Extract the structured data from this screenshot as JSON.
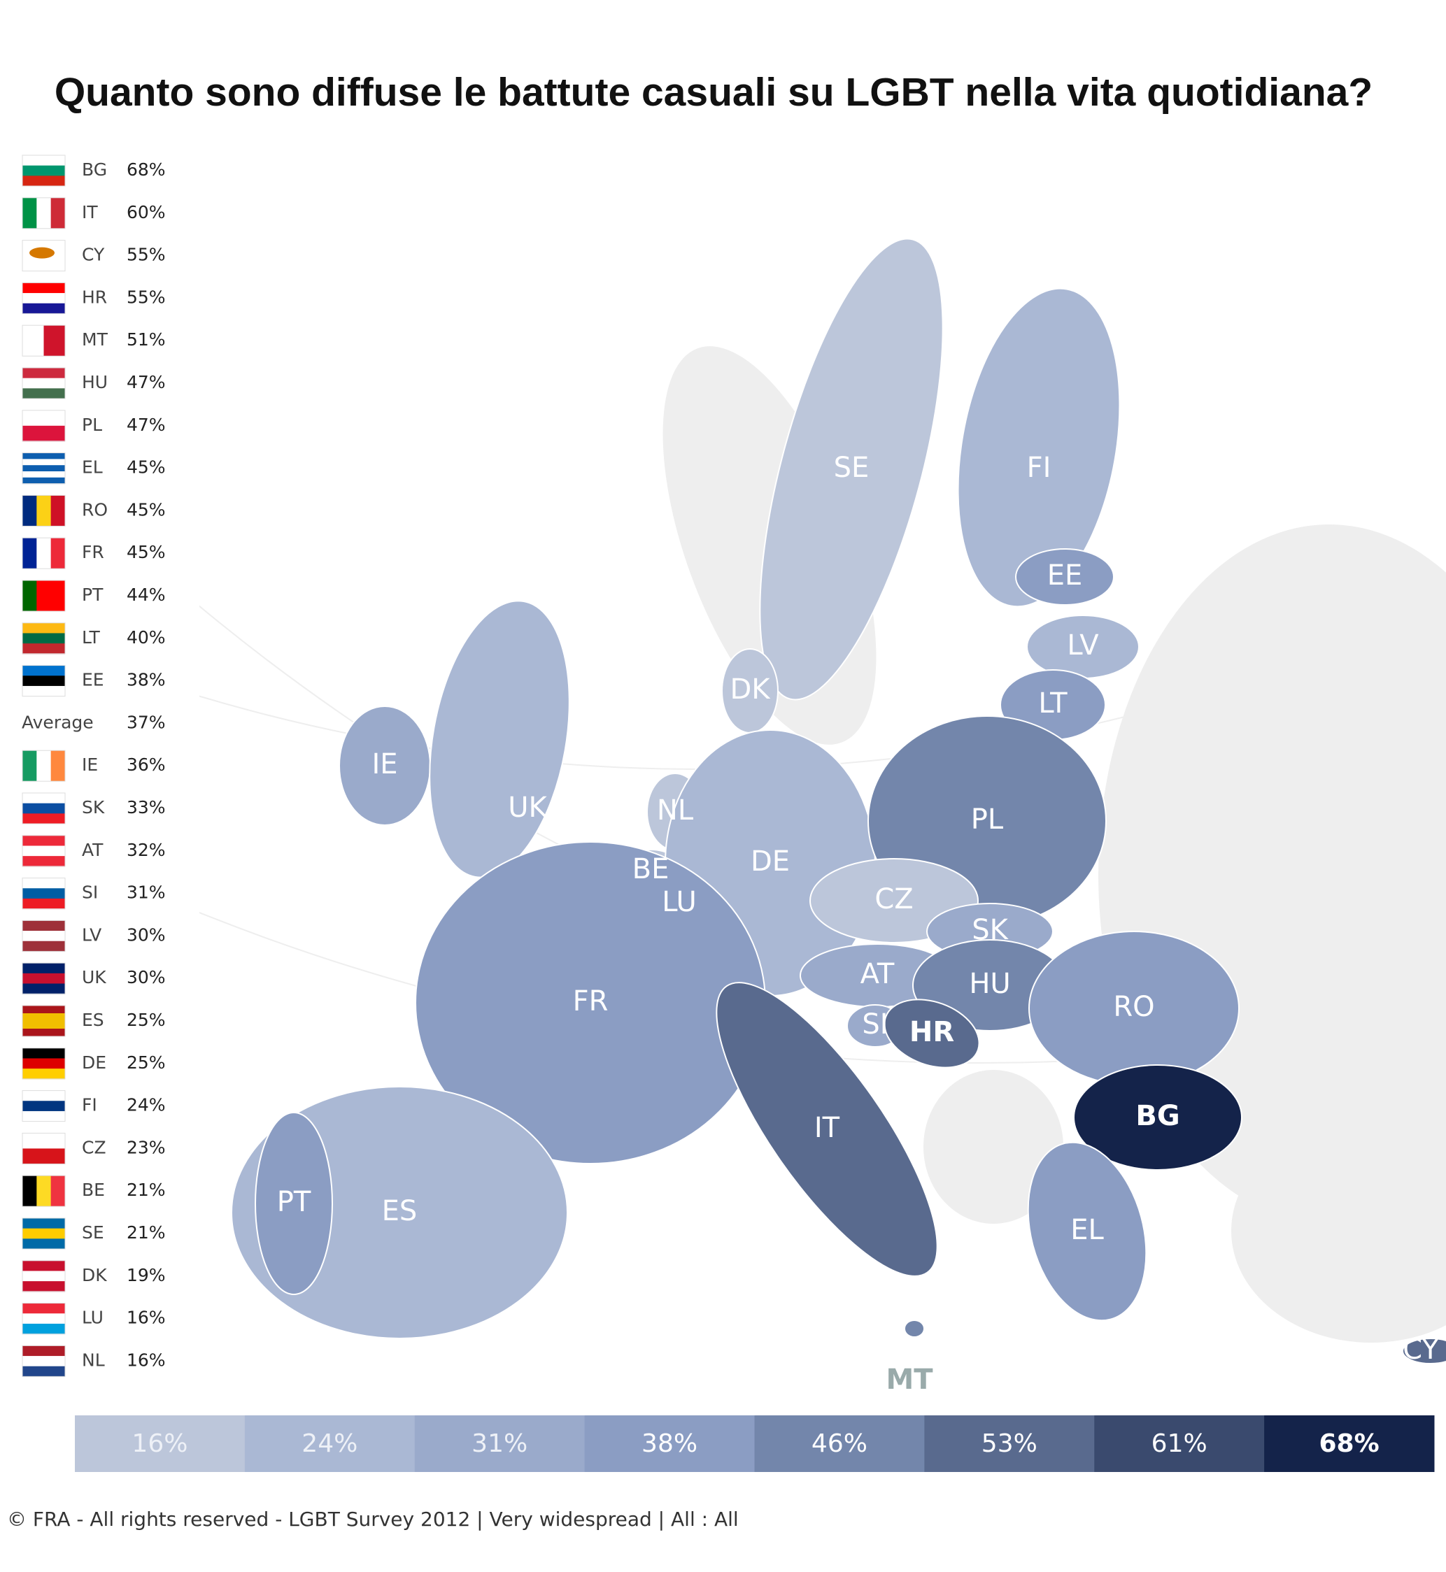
{
  "header": {
    "title": "Quanto sono diffuse le battute casuali su LGBT nella vita quotidiana?"
  },
  "ranking": [
    {
      "code": "BG",
      "value": "68%"
    },
    {
      "code": "IT",
      "value": "60%"
    },
    {
      "code": "CY",
      "value": "55%"
    },
    {
      "code": "HR",
      "value": "55%"
    },
    {
      "code": "MT",
      "value": "51%"
    },
    {
      "code": "HU",
      "value": "47%"
    },
    {
      "code": "PL",
      "value": "47%"
    },
    {
      "code": "EL",
      "value": "45%"
    },
    {
      "code": "RO",
      "value": "45%"
    },
    {
      "code": "FR",
      "value": "45%"
    },
    {
      "code": "PT",
      "value": "44%"
    },
    {
      "code": "LT",
      "value": "40%"
    },
    {
      "code": "EE",
      "value": "38%"
    },
    {
      "code": "Average",
      "value": "37%"
    },
    {
      "code": "IE",
      "value": "36%"
    },
    {
      "code": "SK",
      "value": "33%"
    },
    {
      "code": "AT",
      "value": "32%"
    },
    {
      "code": "SI",
      "value": "31%"
    },
    {
      "code": "LV",
      "value": "30%"
    },
    {
      "code": "UK",
      "value": "30%"
    },
    {
      "code": "ES",
      "value": "25%"
    },
    {
      "code": "DE",
      "value": "25%"
    },
    {
      "code": "FI",
      "value": "24%"
    },
    {
      "code": "CZ",
      "value": "23%"
    },
    {
      "code": "BE",
      "value": "21%"
    },
    {
      "code": "SE",
      "value": "21%"
    },
    {
      "code": "DK",
      "value": "19%"
    },
    {
      "code": "LU",
      "value": "16%"
    },
    {
      "code": "NL",
      "value": "16%"
    }
  ],
  "map": {
    "labels": [
      "SE",
      "FI",
      "EE",
      "LV",
      "LT",
      "DK",
      "IE",
      "UK",
      "NL",
      "BE",
      "LU",
      "DE",
      "PL",
      "CZ",
      "SK",
      "FR",
      "AT",
      "HU",
      "RO",
      "SI",
      "HR",
      "IT",
      "BG",
      "ES",
      "PT",
      "EL",
      "MT",
      "CY"
    ]
  },
  "legend": [
    "16%",
    "24%",
    "31%",
    "38%",
    "46%",
    "53%",
    "61%",
    "68%"
  ],
  "footer": "© FRA - All rights reserved - LGBT Survey 2012 | Very widespread | All : All"
}
